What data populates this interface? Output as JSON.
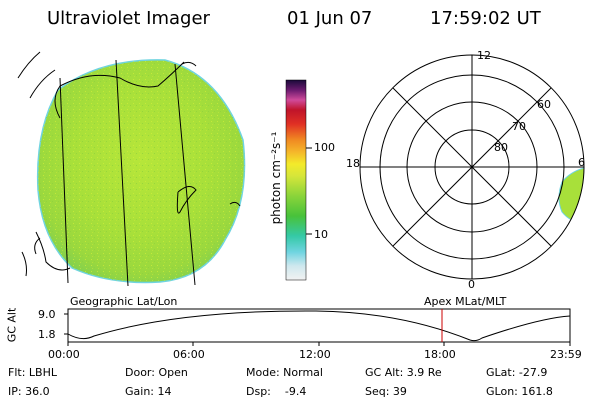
{
  "header": {
    "title": "Ultraviolet Imager",
    "date": "01 Jun 07",
    "time": "17:59:02 UT"
  },
  "colorbar": {
    "unit_label": "photon cm⁻²s⁻¹",
    "tick_100": "100",
    "tick_10": "10"
  },
  "left_panel": {
    "caption": "Geographic Lat/Lon"
  },
  "right_panel": {
    "caption": "Apex  MLat/MLT",
    "labels": {
      "mlt_12": "12",
      "mlt_18": "18",
      "mlt_6": "6",
      "mlt_0": "0",
      "lat_60": "60",
      "lat_70": "70",
      "lat_80": "80"
    }
  },
  "orbit_plot": {
    "ylabel": "GC Alt",
    "y_top": "9.0",
    "y_bottom": "1.8",
    "x_ticks": [
      "00:00",
      "06:00",
      "12:00",
      "18:00",
      "23:59"
    ],
    "current_time_marker": "17:59:02",
    "colors": {
      "marker": "#cc0000"
    }
  },
  "status": {
    "flt": "Flt: LBHL",
    "ip": "IP: 36.0",
    "door": "Door: Open",
    "gain": "Gain: 14",
    "mode": "Mode: Normal",
    "dsp": "Dsp:    -9.4",
    "gc_alt": "GC Alt: 3.9 Re",
    "seq": "Seq: 39",
    "glat": "GLat: -27.9",
    "glon": "GLon: 161.8"
  }
}
